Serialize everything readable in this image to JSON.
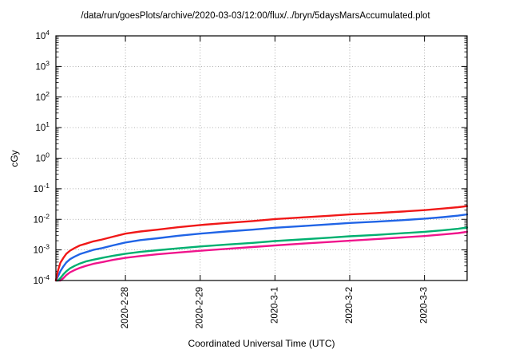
{
  "chart_data": {
    "type": "line",
    "title": "/data/run/goesPlots/archive/2020-03-03/12:00/flux/../bryn/5daysMarsAccumulated.plot",
    "xlabel": "Coordinated Universal Time (UTC)",
    "ylabel": "cGy",
    "x_axis": {
      "unit": "days-from-window-start",
      "min": 0,
      "max": 5.5,
      "ticks": [
        {
          "pos": 0.93,
          "label": "2020-2-28"
        },
        {
          "pos": 1.93,
          "label": "2020-2-29"
        },
        {
          "pos": 2.93,
          "label": "2020-3-1"
        },
        {
          "pos": 3.93,
          "label": "2020-3-2"
        },
        {
          "pos": 4.93,
          "label": "2020-3-3"
        }
      ]
    },
    "y_axis": {
      "scale": "log10",
      "min_exp": -4,
      "max_exp": 4,
      "tick_base": "10",
      "tick_exponents": [
        4,
        3,
        2,
        1,
        0,
        -1,
        -2,
        -3,
        -4
      ]
    },
    "grid": {
      "visible": true,
      "style": "dotted",
      "color": "#9a9a9a"
    },
    "x_days": [
      0.0,
      0.03,
      0.06,
      0.1,
      0.14,
      0.19,
      0.25,
      0.32,
      0.4,
      0.5,
      0.62,
      0.76,
      0.93,
      1.13,
      1.36,
      1.63,
      1.93,
      2.28,
      2.63,
      2.93,
      3.28,
      3.63,
      3.93,
      4.28,
      4.63,
      4.93,
      5.18,
      5.38,
      5.5
    ],
    "series": [
      {
        "name": "red",
        "color": "#f01818",
        "values": [
          0.0001,
          0.00022,
          0.00038,
          0.00055,
          0.00075,
          0.00095,
          0.00115,
          0.0014,
          0.0016,
          0.0019,
          0.0022,
          0.0027,
          0.0034,
          0.004,
          0.0046,
          0.0055,
          0.0065,
          0.0076,
          0.0088,
          0.0102,
          0.0115,
          0.013,
          0.0145,
          0.016,
          0.018,
          0.02,
          0.0225,
          0.025,
          0.027
        ]
      },
      {
        "name": "blue",
        "color": "#2064e6",
        "values": [
          0.0001,
          0.00014,
          0.0002,
          0.00029,
          0.00039,
          0.0005,
          0.0006,
          0.00073,
          0.00084,
          0.001,
          0.00115,
          0.0014,
          0.00175,
          0.0021,
          0.0024,
          0.0029,
          0.0034,
          0.004,
          0.0046,
          0.0053,
          0.006,
          0.0068,
          0.0076,
          0.0084,
          0.0094,
          0.0105,
          0.0118,
          0.0132,
          0.0145
        ]
      },
      {
        "name": "green",
        "color": "#00b070",
        "values": [
          0.0001,
          0.0001,
          0.00012,
          0.00016,
          0.0002,
          0.00025,
          0.0003,
          0.00036,
          0.00042,
          0.00048,
          0.00055,
          0.00064,
          0.00075,
          0.00086,
          0.00098,
          0.00112,
          0.0013,
          0.0015,
          0.0017,
          0.00195,
          0.0022,
          0.0025,
          0.0028,
          0.0031,
          0.0035,
          0.0039,
          0.0044,
          0.0049,
          0.0054
        ]
      },
      {
        "name": "magenta",
        "color": "#f0148c",
        "values": [
          0.0001,
          0.0001,
          0.0001,
          0.00012,
          0.00015,
          0.000185,
          0.00022,
          0.00026,
          0.0003,
          0.00035,
          0.0004,
          0.00047,
          0.00055,
          0.00063,
          0.00072,
          0.00082,
          0.00094,
          0.00108,
          0.00124,
          0.0014,
          0.0016,
          0.0018,
          0.002,
          0.00225,
          0.00255,
          0.00285,
          0.0032,
          0.00355,
          0.0039
        ]
      }
    ]
  }
}
